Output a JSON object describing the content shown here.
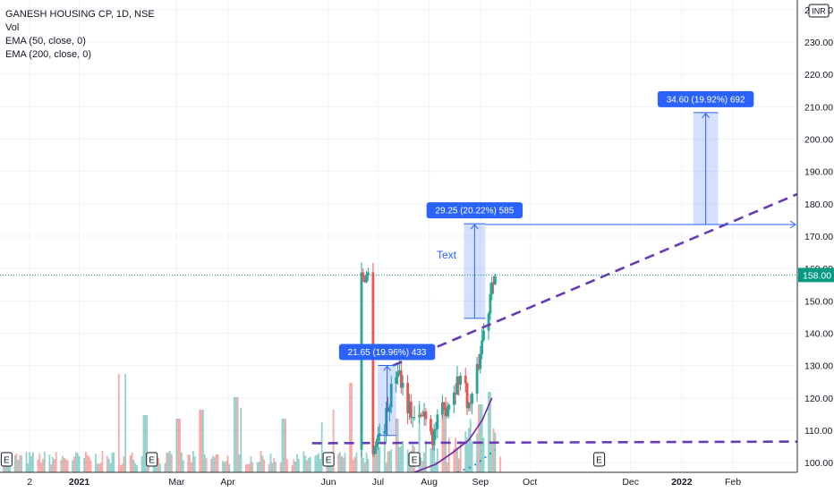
{
  "header": {
    "symbol_line": "GANESH HOUSING CP, 1D, NSE",
    "indicators": [
      "Vol",
      "EMA (50, close, 0)",
      "EMA (200, close, 0)"
    ]
  },
  "currency_badge": "INR",
  "current_price_label": "158.00",
  "text_annotation": "Text",
  "chart_data": {
    "type": "candlestick",
    "title": "GANESH HOUSING CP, 1D, NSE",
    "y_ticks": [
      "100.00",
      "110.00",
      "120.00",
      "130.00",
      "140.00",
      "150.00",
      "160.00",
      "170.00",
      "180.00",
      "190.00",
      "200.00",
      "210.00",
      "220.00",
      "230.00",
      "240.00"
    ],
    "ylim": [
      97,
      243
    ],
    "x_ticks": [
      "2",
      "2021",
      "Mar",
      "Apr",
      "Jun",
      "Jul",
      "Aug",
      "Sep",
      "Oct",
      "Dec",
      "2022",
      "Feb"
    ],
    "x_tick_dates": [
      "2020-12-02",
      "2021-01-01",
      "2021-03-01",
      "2021-04-01",
      "2021-06-01",
      "2021-07-01",
      "2021-08-01",
      "2021-09-01",
      "2021-10-01",
      "2021-12-01",
      "2022-01-01",
      "2022-02-01"
    ],
    "xlim": [
      "2020-11-14",
      "2022-03-12"
    ],
    "last_price": 158,
    "price_line_color": "#089981",
    "up_color": "#26a69a",
    "down_color": "#ef5350",
    "measure_boxes": [
      {
        "label": "21.65 (19.96%) 433",
        "start": "2021-07-01",
        "end": "2021-07-12",
        "from": 108.4,
        "to": 130.05
      },
      {
        "label": "29.25 (20.22%) 585",
        "start": "2021-08-22",
        "end": "2021-09-04",
        "from": 144.6,
        "to": 173.85
      },
      {
        "label": "34.60 (19.92%) 692",
        "start": "2022-01-08",
        "end": "2022-01-23",
        "from": 173.6,
        "to": 208.2
      }
    ],
    "horizontal_ray": {
      "start": "2021-09-04",
      "value": 173.6,
      "color": "#2962ff"
    },
    "trendlines": [
      {
        "name": "rising resistance",
        "from": {
          "date": "2021-07-10",
          "value": 130
        },
        "to": {
          "date": "2022-03-12",
          "value": 183
        },
        "color": "#673ab7",
        "style": "dashed"
      },
      {
        "name": "support",
        "from": {
          "date": "2021-05-22",
          "value": 106
        },
        "to": {
          "date": "2022-03-12",
          "value": 106.5
        },
        "color": "#673ab7",
        "style": "dashed"
      }
    ],
    "ema50": [
      {
        "date": "2021-07-23",
        "value": 97
      },
      {
        "date": "2021-08-05",
        "value": 99.5
      },
      {
        "date": "2021-08-15",
        "value": 103
      },
      {
        "date": "2021-08-25",
        "value": 107
      },
      {
        "date": "2021-09-02",
        "value": 113
      },
      {
        "date": "2021-09-08",
        "value": 120
      }
    ],
    "ema200": [
      {
        "date": "2021-08-18",
        "value": 97
      },
      {
        "date": "2021-08-28",
        "value": 99
      },
      {
        "date": "2021-09-05",
        "value": 102
      },
      {
        "date": "2021-09-10",
        "value": 104
      }
    ],
    "earnings_markers": [
      "2020-11-18",
      "2021-02-14",
      "2021-06-01",
      "2021-07-23",
      "2021-11-12"
    ],
    "earnings_label": "E"
  }
}
